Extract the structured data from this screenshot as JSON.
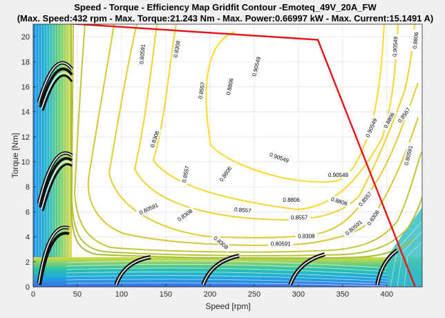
{
  "chart_data": {
    "type": "contour",
    "title": "Speed - Torque - Efficiency Map Gridfit Contour -Emoteq_49V_20A_FW",
    "subtitle": "(Max. Speed:432 rpm - Max. Torque:21.243 Nm - Max. Power:0.66997 kW - Max. Current:15.1491 A)",
    "xlabel": "Speed [rpm]",
    "ylabel": "Torque [Nm]",
    "xlim": [
      0,
      440
    ],
    "ylim": [
      0,
      21
    ],
    "xticks": [
      0,
      50,
      100,
      150,
      200,
      250,
      300,
      350,
      400
    ],
    "yticks": [
      0,
      2,
      4,
      6,
      8,
      10,
      12,
      14,
      16,
      18,
      20
    ],
    "grid": true,
    "colormap": "parula",
    "boundary": {
      "color": "#e31a1c",
      "x": [
        0,
        322,
        432
      ],
      "y": [
        21.243,
        19.75,
        0
      ]
    },
    "contour_levels": [
      0.80591,
      0.8308,
      0.8557,
      0.8806,
      0.90549
    ],
    "contour_labels": [
      {
        "text": "0.90549",
        "x": 253,
        "y": 17.6,
        "rot": -76
      },
      {
        "text": "0.90549",
        "x": 410,
        "y": 19.2,
        "rot": -87
      },
      {
        "text": "0.90549",
        "x": 278,
        "y": 10.3,
        "rot": 20
      },
      {
        "text": "0.90549",
        "x": 345,
        "y": 8.9,
        "rot": 0
      },
      {
        "text": "0.90549",
        "x": 383,
        "y": 12.7,
        "rot": -66
      },
      {
        "text": "0.8806",
        "x": 223,
        "y": 16.0,
        "rot": -78
      },
      {
        "text": "0.8806",
        "x": 433,
        "y": 19.7,
        "rot": -84
      },
      {
        "text": "0.8806",
        "x": 218,
        "y": 9.0,
        "rot": -55
      },
      {
        "text": "0.8806",
        "x": 292,
        "y": 6.9,
        "rot": 0
      },
      {
        "text": "0.8806",
        "x": 346,
        "y": 6.8,
        "rot": 18
      },
      {
        "text": "0.8806",
        "x": 403,
        "y": 13.3,
        "rot": -62
      },
      {
        "text": "0.8557",
        "x": 191,
        "y": 15.7,
        "rot": -80
      },
      {
        "text": "0.8557",
        "x": 173,
        "y": 9.0,
        "rot": -78
      },
      {
        "text": "0.8557",
        "x": 237,
        "y": 6.1,
        "rot": 5
      },
      {
        "text": "0.8557",
        "x": 301,
        "y": 5.5,
        "rot": 0
      },
      {
        "text": "0.8557",
        "x": 376,
        "y": 7.0,
        "rot": -50
      },
      {
        "text": "0.8557",
        "x": 420,
        "y": 13.7,
        "rot": -54
      },
      {
        "text": "0.8308",
        "x": 163,
        "y": 19.0,
        "rot": -80
      },
      {
        "text": "0.8308",
        "x": 138,
        "y": 11.8,
        "rot": -72
      },
      {
        "text": "0.8308",
        "x": 172,
        "y": 5.7,
        "rot": -35
      },
      {
        "text": "0.8308",
        "x": 309,
        "y": 4.0,
        "rot": 0
      },
      {
        "text": "0.8308",
        "x": 385,
        "y": 5.5,
        "rot": -55
      },
      {
        "text": "0.8308",
        "x": 212,
        "y": 3.5,
        "rot": 40
      },
      {
        "text": "0.80591",
        "x": 124,
        "y": 18.6,
        "rot": -85
      },
      {
        "text": "0.80591",
        "x": 131,
        "y": 6.2,
        "rot": -25
      },
      {
        "text": "0.80591",
        "x": 280,
        "y": 3.4,
        "rot": 0
      },
      {
        "text": "0.80591",
        "x": 363,
        "y": 4.7,
        "rot": -40
      },
      {
        "text": "0.80591",
        "x": 425,
        "y": 10.5,
        "rot": -76
      }
    ]
  }
}
